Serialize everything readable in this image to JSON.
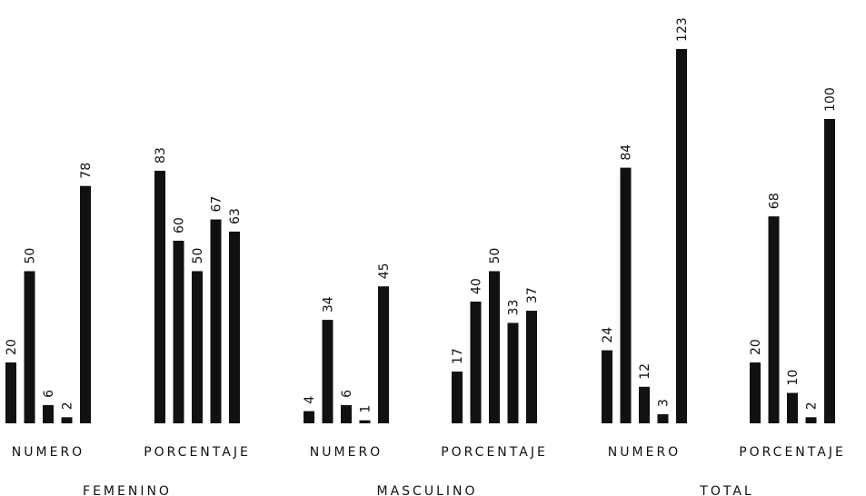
{
  "chart_data": {
    "type": "bar",
    "sections": [
      {
        "name": "FEMENINO",
        "groups": [
          {
            "label": "NUMERO",
            "values": [
              20,
              50,
              6,
              2,
              78
            ]
          },
          {
            "label": "PORCENTAJE",
            "values": [
              83,
              60,
              50,
              67,
              63
            ]
          }
        ]
      },
      {
        "name": "MASCULINO",
        "groups": [
          {
            "label": "NUMERO",
            "values": [
              4,
              34,
              6,
              1,
              45
            ]
          },
          {
            "label": "PORCENTAJE",
            "values": [
              17,
              40,
              50,
              33,
              37
            ]
          }
        ]
      },
      {
        "name": "TOTAL",
        "groups": [
          {
            "label": "NUMERO",
            "values": [
              24,
              84,
              12,
              3,
              123
            ]
          },
          {
            "label": "PORCENTAJE",
            "values": [
              20,
              68,
              10,
              2,
              100
            ]
          }
        ]
      }
    ],
    "bar_color": "#111111",
    "grid": false,
    "legend": "none"
  }
}
